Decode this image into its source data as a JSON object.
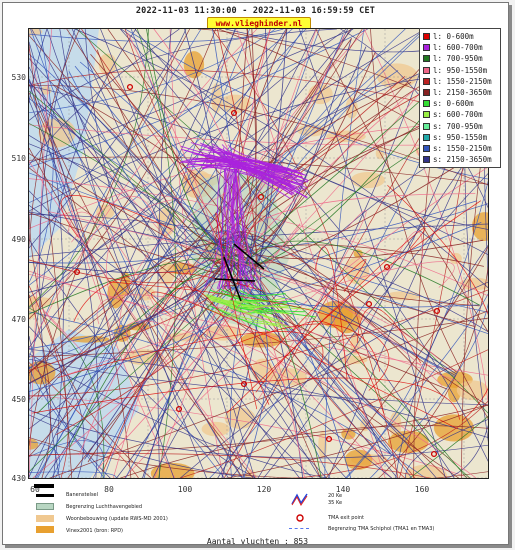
{
  "header": {
    "title": "2022-11-03 11:30:00 - 2022-11-03 16:59:59 CET",
    "url_badge": "www.vlieghinder.nl"
  },
  "axes": {
    "y_ticks": [
      "530",
      "510",
      "490",
      "470",
      "450",
      "430"
    ],
    "x_ticks": [
      "60",
      "80",
      "100",
      "120",
      "140",
      "160"
    ]
  },
  "legend": [
    {
      "label": "l: 0-600m",
      "color": "#dd0000"
    },
    {
      "label": "l: 600-700m",
      "color": "#aa22dd"
    },
    {
      "label": "l: 700-950m",
      "color": "#227722"
    },
    {
      "label": "l: 950-1550m",
      "color": "#ee6688"
    },
    {
      "label": "l: 1550-2150m",
      "color": "#bb2222"
    },
    {
      "label": "l: 2150-3650m",
      "color": "#882222"
    },
    {
      "label": "s: 0-600m",
      "color": "#33dd33"
    },
    {
      "label": "s: 600-700m",
      "color": "#99ee44"
    },
    {
      "label": "s: 700-950m",
      "color": "#66ee99"
    },
    {
      "label": "s: 950-1550m",
      "color": "#22aaaa"
    },
    {
      "label": "s: 1550-2150m",
      "color": "#3355bb"
    },
    {
      "label": "s: 2150-3650m",
      "color": "#333388"
    }
  ],
  "key": {
    "runway": "Banenstelsel",
    "airport_area": "Begrenzing Luchthavengebied",
    "housing": "Woonbebouwing (update RWS-MD 2001)",
    "vinex": "Vinex2001 (bron: RPD)",
    "ke35": "35 Ke",
    "ke20": "20 Ke",
    "tma_exit": "TMA exit point",
    "tma_boundary": "Begrenzing TMA Schiphol  (TMA1 en TMA3)"
  },
  "colors": {
    "runway": "#000000",
    "airport_area": "#b8d6c2",
    "housing": "#f0c890",
    "vinex": "#e8a030",
    "ke_blue": "#2244dd",
    "ke_red": "#dd2222",
    "tma_exit": "#cc0000",
    "tma_boundary": "#5577ee"
  },
  "footer": {
    "count": "Aantal vluchten : 853"
  }
}
